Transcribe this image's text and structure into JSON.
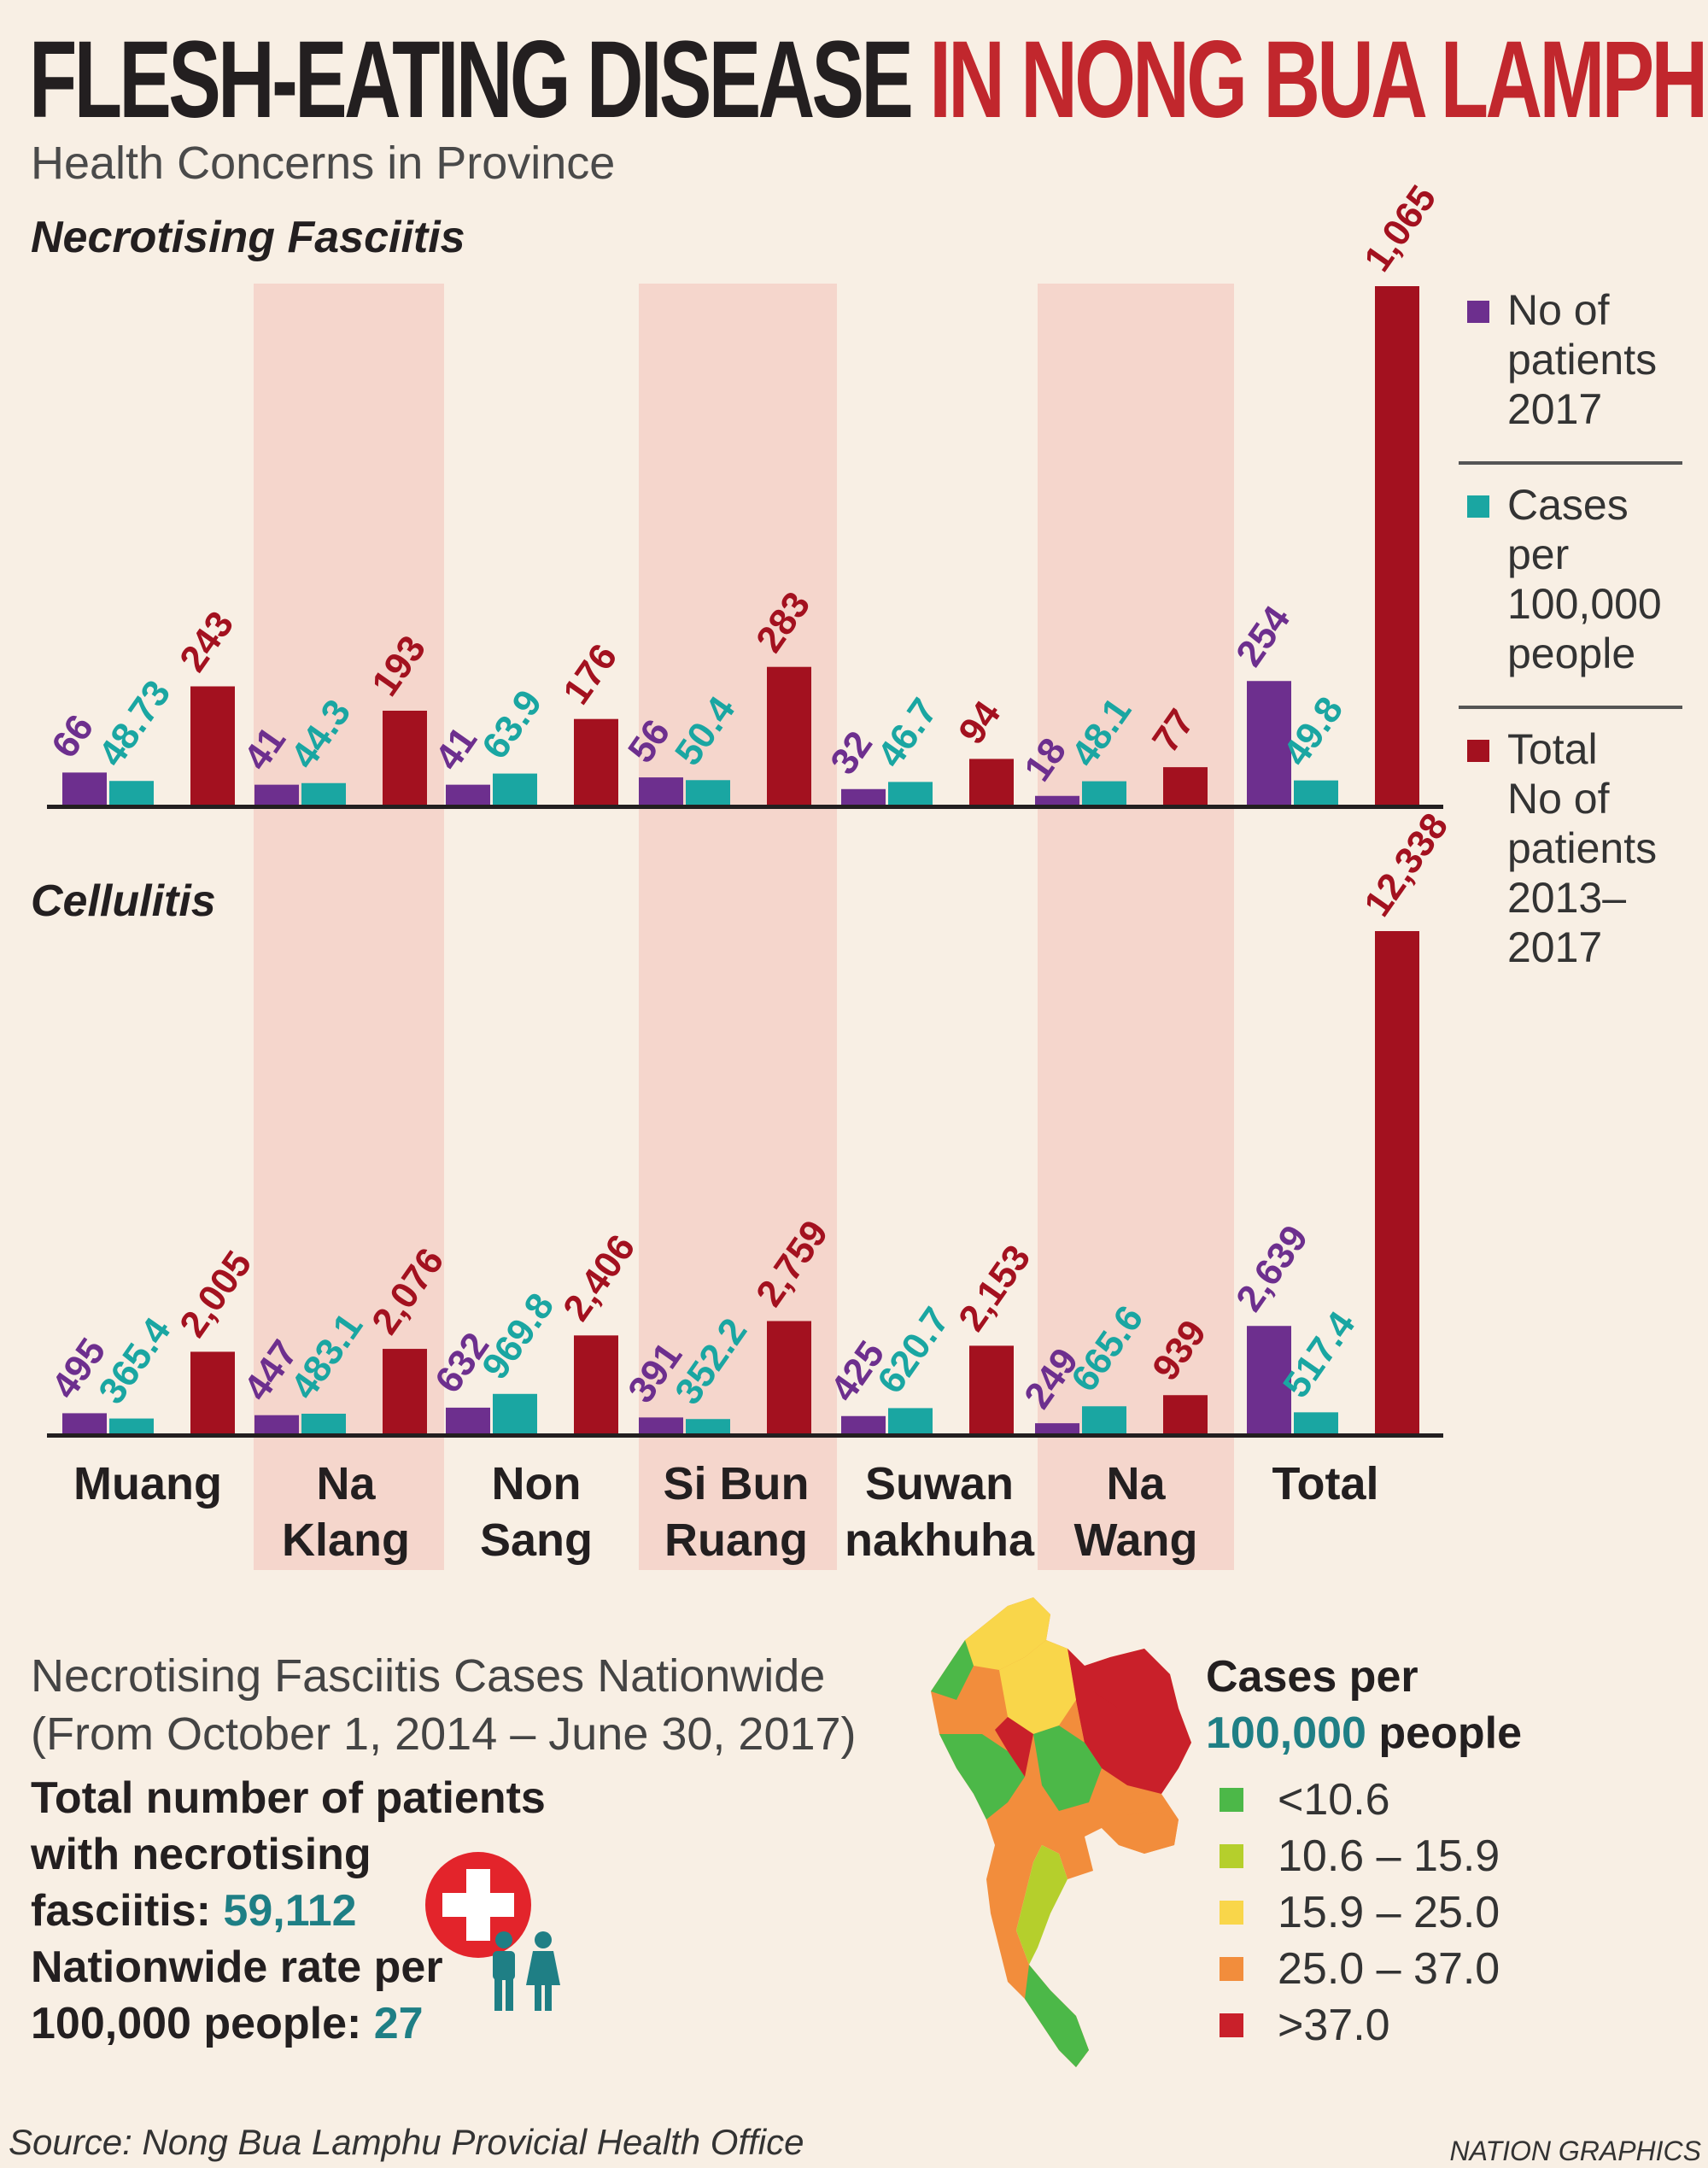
{
  "header": {
    "title_dark": "FLESH-EATING DISEASE",
    "title_red": "IN NONG BUA LAMPHU",
    "subtitle": "Health Concerns in Province"
  },
  "colors": {
    "purple": "#6d2f8e",
    "teal": "#1aa6a2",
    "red": "#a3111f",
    "band": "#f5d6cc",
    "background": "#f8efe4"
  },
  "chart_data": [
    {
      "type": "bar",
      "title": "Necrotising Fasciitis",
      "categories": [
        "Muang",
        "Na Klang",
        "Non Sang",
        "Si Bun Ruang",
        "Suwan nakhuha",
        "Na Wang",
        "Total"
      ],
      "series": [
        {
          "name": "No of patients 2017",
          "values": [
            66,
            41,
            41,
            56,
            32,
            18,
            254
          ],
          "labels": [
            "66",
            "41",
            "41",
            "56",
            "32",
            "18",
            "254"
          ]
        },
        {
          "name": "Cases per 100,000 people",
          "values": [
            48.73,
            44.3,
            63.9,
            50.4,
            46.7,
            48.1,
            49.8
          ],
          "labels": [
            "48.73",
            "44.3",
            "63.9",
            "50.4",
            "46.7",
            "48.1",
            "49.8"
          ]
        },
        {
          "name": "Total No of patients 2013–2017",
          "values": [
            243,
            193,
            176,
            283,
            94,
            77,
            1065
          ],
          "labels": [
            "243",
            "193",
            "176",
            "283",
            "94",
            "77",
            "1,065"
          ]
        }
      ],
      "ylim": [
        0,
        1065
      ],
      "grid": false
    },
    {
      "type": "bar",
      "title": "Cellulitis",
      "categories": [
        "Muang",
        "Na Klang",
        "Non Sang",
        "Si Bun Ruang",
        "Suwan nakhuha",
        "Na Wang",
        "Total"
      ],
      "series": [
        {
          "name": "No of patients 2017",
          "values": [
            495,
            447,
            632,
            391,
            425,
            249,
            2639
          ],
          "labels": [
            "495",
            "447",
            "632",
            "391",
            "425",
            "249",
            "2,639"
          ]
        },
        {
          "name": "Cases per 100,000 people",
          "values": [
            365.4,
            483.1,
            969.8,
            352.2,
            620.7,
            665.6,
            517.4
          ],
          "labels": [
            "365.4",
            "483.1",
            "969.8",
            "352.2",
            "620.7",
            "665.6",
            "517.4"
          ]
        },
        {
          "name": "Total No of patients 2013–2017",
          "values": [
            2005,
            2076,
            2406,
            2759,
            2153,
            939,
            12338
          ],
          "labels": [
            "2,005",
            "2,076",
            "2,406",
            "2,759",
            "2,153",
            "939",
            "12,338"
          ]
        }
      ],
      "ylim": [
        0,
        12338
      ],
      "grid": false
    }
  ],
  "category_labels": [
    [
      "Muang"
    ],
    [
      "Na",
      "Klang"
    ],
    [
      "Non",
      "Sang"
    ],
    [
      "Si Bun",
      "Ruang"
    ],
    [
      "Suwan",
      "nakhuha"
    ],
    [
      "Na",
      "Wang"
    ],
    [
      "Total"
    ]
  ],
  "legend": [
    {
      "lines": [
        "No of",
        "patients",
        "2017"
      ],
      "color": "#6d2f8e"
    },
    {
      "lines": [
        "Cases",
        "per",
        "100,000",
        "people"
      ],
      "color": "#1aa6a2"
    },
    {
      "lines": [
        "Total",
        "No of",
        "patients",
        "2013–",
        "2017"
      ],
      "color": "#a3111f"
    }
  ],
  "nationwide": {
    "title_line1": "Necrotising Fasciitis Cases Nationwide",
    "title_line2": "(From October 1, 2014 – June 30, 2017)",
    "total_line1": "Total number of patients",
    "total_line2": "with necrotising",
    "total_line3": "fasciitis: ",
    "total_value": "59,112",
    "rate_line1": "Nationwide rate per",
    "rate_line2": "100,000 people: ",
    "rate_value": "27"
  },
  "map_legend": {
    "title_line1": "Cases per",
    "title_teal": "100,000",
    "title_rest": " people",
    "items": [
      {
        "label": "<10.6",
        "color": "#4cb848"
      },
      {
        "label": "10.6 – 15.9",
        "color": "#b5cf2c"
      },
      {
        "label": "15.9 – 25.0",
        "color": "#f9d64a"
      },
      {
        "label": "25.0 – 37.0",
        "color": "#f28d3c"
      },
      {
        "label": ">37.0",
        "color": "#c9202a"
      }
    ]
  },
  "footer": {
    "source": "Source: Nong Bua Lamphu Provicial Health Office",
    "credit": "NATION GRAPHICS"
  }
}
